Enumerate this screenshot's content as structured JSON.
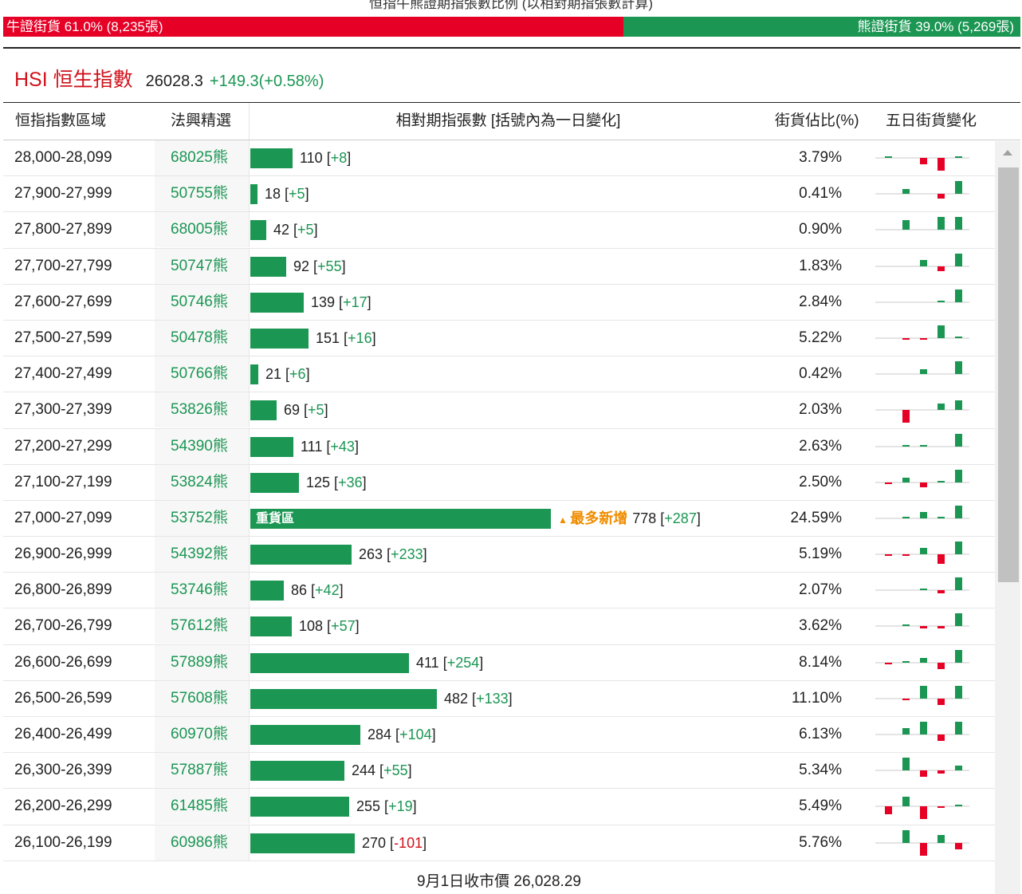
{
  "header": {
    "title": "恒指牛熊證期指張數比例 (以相對期指張數計算)",
    "bull_label": "牛證街貨 61.0% (8,235張)",
    "bear_label": "熊證街貨 39.0% (5,269張)",
    "bull_pct": 61.0,
    "bear_pct": 39.0
  },
  "index": {
    "name": "HSI 恒生指數",
    "price": "26028.3",
    "change": "+149.3(+0.58%)"
  },
  "columns": {
    "range": "恒指指數區域",
    "pick": "法興精選",
    "contracts": "相對期指張數 [括號內為一日變化]",
    "ratio": "街貨佔比(%)",
    "five_day": "五日街貨變化"
  },
  "colors": {
    "bull": "#e60026",
    "bear": "#1b9653",
    "highlight": "#f08c00"
  },
  "rows": [
    {
      "range": "28,000-28,099",
      "code": "68025熊",
      "count": "110",
      "change": "+8",
      "ratio": "3.79%",
      "value": 110,
      "spark": [
        0.1,
        0.0,
        -0.4,
        -0.8,
        0.1
      ]
    },
    {
      "range": "27,900-27,999",
      "code": "50755熊",
      "count": "18",
      "change": "+5",
      "ratio": "0.41%",
      "value": 18,
      "spark": [
        0.0,
        0.3,
        0.0,
        -0.3,
        0.8
      ]
    },
    {
      "range": "27,800-27,899",
      "code": "68005熊",
      "count": "42",
      "change": "+5",
      "ratio": "0.90%",
      "value": 42,
      "spark": [
        0.0,
        0.6,
        0.0,
        0.8,
        0.8
      ]
    },
    {
      "range": "27,700-27,799",
      "code": "50747熊",
      "count": "92",
      "change": "+55",
      "ratio": "1.83%",
      "value": 92,
      "spark": [
        0.0,
        0.0,
        0.4,
        -0.3,
        0.8
      ]
    },
    {
      "range": "27,600-27,699",
      "code": "50746熊",
      "count": "139",
      "change": "+17",
      "ratio": "2.84%",
      "value": 139,
      "spark": [
        0.0,
        0.0,
        0.0,
        0.1,
        0.8
      ]
    },
    {
      "range": "27,500-27,599",
      "code": "50478熊",
      "count": "151",
      "change": "+16",
      "ratio": "5.22%",
      "value": 151,
      "spark": [
        0.0,
        -0.1,
        -0.1,
        0.8,
        0.1
      ]
    },
    {
      "range": "27,400-27,499",
      "code": "50766熊",
      "count": "21",
      "change": "+6",
      "ratio": "0.42%",
      "value": 21,
      "spark": [
        0.0,
        0.0,
        0.3,
        0.0,
        0.8
      ]
    },
    {
      "range": "27,300-27,399",
      "code": "53826熊",
      "count": "69",
      "change": "+5",
      "ratio": "2.03%",
      "value": 69,
      "spark": [
        0.0,
        -0.8,
        0.0,
        0.4,
        0.6
      ]
    },
    {
      "range": "27,200-27,299",
      "code": "54390熊",
      "count": "111",
      "change": "+43",
      "ratio": "2.63%",
      "value": 111,
      "spark": [
        0.0,
        0.1,
        0.05,
        0.0,
        0.8
      ]
    },
    {
      "range": "27,100-27,199",
      "code": "53824熊",
      "count": "125",
      "change": "+36",
      "ratio": "2.50%",
      "value": 125,
      "spark": [
        -0.1,
        0.3,
        -0.3,
        0.1,
        0.8
      ]
    },
    {
      "range": "27,000-27,099",
      "code": "53752熊",
      "count": "778",
      "change": "+287",
      "ratio": "24.59%",
      "value": 778,
      "label": "重貨區",
      "badge": "最多新增",
      "spark": [
        0.0,
        0.1,
        0.4,
        0.1,
        0.8
      ]
    },
    {
      "range": "26,900-26,999",
      "code": "54392熊",
      "count": "263",
      "change": "+233",
      "ratio": "5.19%",
      "value": 263,
      "spark": [
        -0.1,
        -0.1,
        0.4,
        -0.6,
        0.8
      ]
    },
    {
      "range": "26,800-26,899",
      "code": "53746熊",
      "count": "86",
      "change": "+42",
      "ratio": "2.07%",
      "value": 86,
      "spark": [
        0.0,
        0.0,
        0.1,
        -0.2,
        0.8
      ]
    },
    {
      "range": "26,700-26,799",
      "code": "57612熊",
      "count": "108",
      "change": "+57",
      "ratio": "3.62%",
      "value": 108,
      "spark": [
        0.0,
        0.05,
        -0.15,
        -0.15,
        0.8
      ]
    },
    {
      "range": "26,600-26,699",
      "code": "57889熊",
      "count": "411",
      "change": "+254",
      "ratio": "8.14%",
      "value": 411,
      "spark": [
        -0.1,
        0.1,
        0.3,
        -0.4,
        0.8
      ]
    },
    {
      "range": "26,500-26,599",
      "code": "57608熊",
      "count": "482",
      "change": "+133",
      "ratio": "11.10%",
      "value": 482,
      "spark": [
        0.0,
        -0.1,
        0.8,
        -0.4,
        0.8
      ]
    },
    {
      "range": "26,400-26,499",
      "code": "60970熊",
      "count": "284",
      "change": "+104",
      "ratio": "6.13%",
      "value": 284,
      "spark": [
        0.0,
        0.4,
        0.8,
        -0.4,
        0.8
      ]
    },
    {
      "range": "26,300-26,399",
      "code": "57887熊",
      "count": "244",
      "change": "+55",
      "ratio": "5.34%",
      "value": 244,
      "spark": [
        0.0,
        0.8,
        -0.4,
        -0.2,
        0.3
      ]
    },
    {
      "range": "26,200-26,299",
      "code": "61485熊",
      "count": "255",
      "change": "+19",
      "ratio": "5.49%",
      "value": 255,
      "spark": [
        -0.5,
        0.6,
        -0.8,
        -0.1,
        0.1
      ]
    },
    {
      "range": "26,100-26,199",
      "code": "60986熊",
      "count": "270",
      "change": "-101",
      "ratio": "5.76%",
      "value": 270,
      "spark": [
        0.0,
        0.8,
        -0.8,
        0.5,
        -0.4
      ]
    }
  ],
  "footer": "9月1日收市價 26,028.29"
}
